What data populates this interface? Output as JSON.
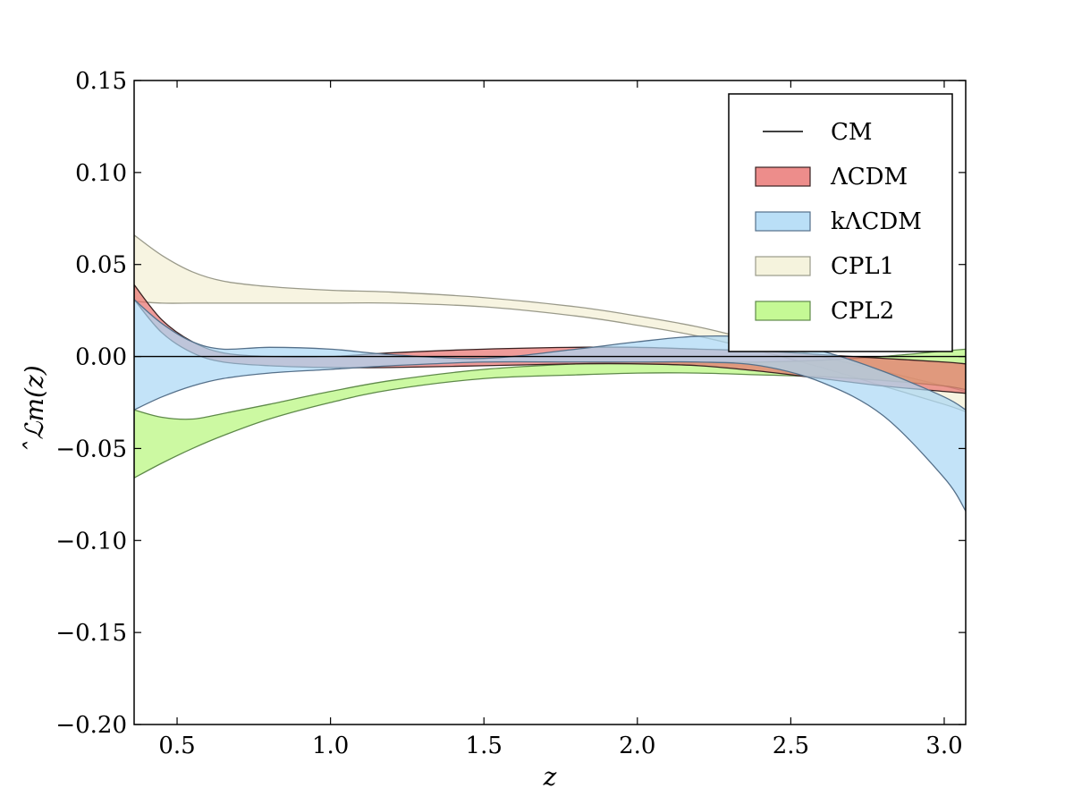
{
  "chart_data": {
    "type": "area",
    "title": "",
    "xlabel": "z",
    "ylabel": "̂ℒm(z)",
    "xlim": [
      0.36,
      3.07
    ],
    "ylim": [
      -0.2,
      0.15
    ],
    "xticks": [
      0.5,
      1.0,
      1.5,
      2.0,
      2.5,
      3.0
    ],
    "xtick_labels": [
      "0.5",
      "1.0",
      "1.5",
      "2.0",
      "2.5",
      "3.0"
    ],
    "yticks": [
      -0.2,
      -0.15,
      -0.1,
      -0.05,
      0.0,
      0.05,
      0.1,
      0.15
    ],
    "ytick_labels": [
      "−0.20",
      "−0.15",
      "−0.10",
      "−0.05",
      "0.00",
      "0.05",
      "0.10",
      "0.15"
    ],
    "grid": false,
    "legend_position": "top-right",
    "x": [
      0.36,
      0.45,
      0.55,
      0.65,
      0.8,
      1.0,
      1.2,
      1.5,
      1.8,
      2.0,
      2.2,
      2.4,
      2.6,
      2.8,
      3.0,
      3.07
    ],
    "series": [
      {
        "name": "CPL1",
        "kind": "band",
        "color": "#f3f0d4",
        "edge": "#9a9a8a",
        "upper": [
          0.066,
          0.055,
          0.046,
          0.041,
          0.038,
          0.036,
          0.035,
          0.032,
          0.027,
          0.022,
          0.016,
          0.008,
          0.0,
          -0.008,
          -0.016,
          -0.019
        ],
        "lower": [
          0.03,
          0.029,
          0.029,
          0.029,
          0.029,
          0.029,
          0.029,
          0.027,
          0.022,
          0.017,
          0.011,
          0.003,
          -0.006,
          -0.016,
          -0.026,
          -0.03
        ]
      },
      {
        "name": "CPL2",
        "kind": "band",
        "color": "#b6f77a",
        "edge": "#5f8a4a",
        "upper": [
          -0.029,
          -0.033,
          -0.034,
          -0.031,
          -0.026,
          -0.019,
          -0.013,
          -0.007,
          -0.004,
          -0.003,
          -0.003,
          -0.003,
          -0.002,
          0.0,
          0.003,
          0.004
        ],
        "lower": [
          -0.066,
          -0.058,
          -0.05,
          -0.043,
          -0.034,
          -0.025,
          -0.018,
          -0.012,
          -0.01,
          -0.009,
          -0.009,
          -0.01,
          -0.011,
          -0.013,
          -0.016,
          -0.018
        ]
      },
      {
        "name": "ΛCDM",
        "kind": "band",
        "color": "#e8706e",
        "edge": "#3a2222",
        "upper": [
          0.039,
          0.02,
          0.008,
          0.002,
          0.0,
          0.0,
          0.002,
          0.004,
          0.005,
          0.005,
          0.004,
          0.003,
          0.001,
          -0.001,
          -0.003,
          -0.004
        ],
        "lower": [
          0.031,
          0.013,
          0.002,
          -0.003,
          -0.005,
          -0.006,
          -0.006,
          -0.005,
          -0.004,
          -0.004,
          -0.005,
          -0.008,
          -0.012,
          -0.016,
          -0.019,
          -0.02
        ]
      },
      {
        "name": "kΛCDM",
        "kind": "band",
        "color": "#a9d7f5",
        "edge": "#55708a",
        "upper": [
          0.031,
          0.018,
          0.008,
          0.004,
          0.005,
          0.004,
          0.001,
          -0.001,
          0.004,
          0.008,
          0.011,
          0.01,
          0.003,
          -0.008,
          -0.022,
          -0.029
        ],
        "lower": [
          -0.029,
          -0.022,
          -0.016,
          -0.012,
          -0.009,
          -0.007,
          -0.005,
          -0.003,
          -0.003,
          -0.003,
          -0.003,
          -0.005,
          -0.014,
          -0.032,
          -0.066,
          -0.084
        ]
      },
      {
        "name": "CM",
        "kind": "line",
        "color": "#000000",
        "values": [
          0.0,
          0.0,
          0.0,
          0.0,
          0.0,
          0.0,
          0.0,
          0.0,
          0.0,
          0.0,
          0.0,
          0.0,
          0.0,
          0.0,
          0.0,
          0.0
        ]
      }
    ],
    "legend_order": [
      "CM",
      "ΛCDM",
      "kΛCDM",
      "CPL1",
      "CPL2"
    ]
  }
}
